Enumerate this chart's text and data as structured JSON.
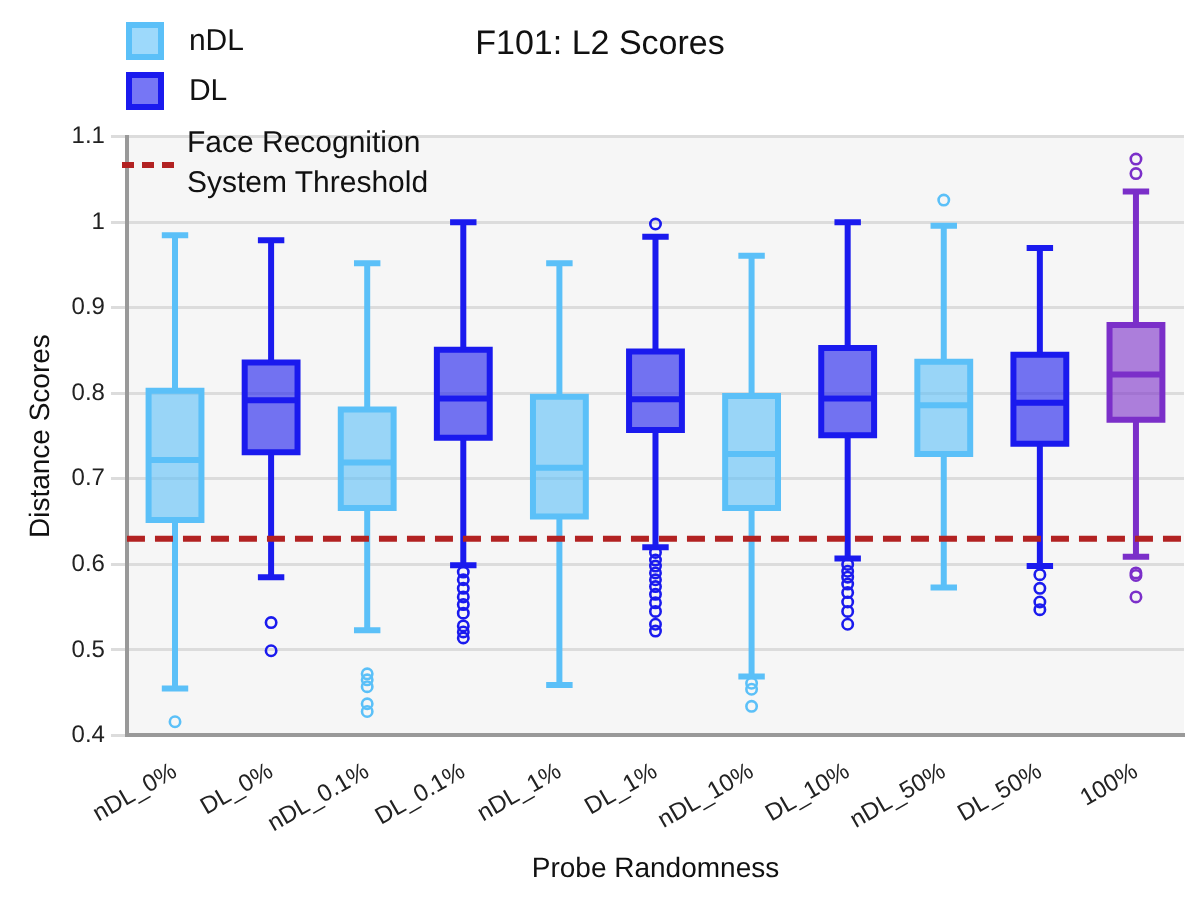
{
  "chart_data": {
    "type": "box",
    "title": "F101: L2 Scores",
    "xlabel": "Probe Randomness",
    "ylabel": "Distance Scores",
    "categories": [
      "nDL_0%",
      "DL_0%",
      "nDL_0.1%",
      "DL_0.1%",
      "nDL_1%",
      "DL_1%",
      "nDL_10%",
      "DL_10%",
      "nDL_50%",
      "DL_50%",
      "100%"
    ],
    "ylim": [
      0.4,
      1.1
    ],
    "yticks": [
      0.4,
      0.5,
      0.6,
      0.7,
      0.8,
      0.9,
      1,
      1.1
    ],
    "grid": "y",
    "legend": "top left",
    "ref_lines": [
      {
        "axis": "y",
        "value": 0.63,
        "label": "Face Recognition System Threshold",
        "color": "#b22222",
        "line_style": "dashed"
      }
    ],
    "series": [
      {
        "name": "nDL",
        "color": "#5bc0f8",
        "boxes": [
          {
            "low": 0.455,
            "q1": 0.652,
            "median": 0.722,
            "q3": 0.803,
            "high": 0.985,
            "outliers": [
              0.416
            ]
          },
          null,
          {
            "low": 0.523,
            "q1": 0.666,
            "median": 0.719,
            "q3": 0.781,
            "high": 0.952,
            "outliers": [
              0.472,
              0.465,
              0.457,
              0.437,
              0.428
            ]
          },
          null,
          {
            "low": 0.459,
            "q1": 0.656,
            "median": 0.713,
            "q3": 0.796,
            "high": 0.952
          },
          null,
          {
            "low": 0.469,
            "q1": 0.666,
            "median": 0.729,
            "q3": 0.797,
            "high": 0.961,
            "outliers": [
              0.461,
              0.454,
              0.434
            ]
          },
          null,
          {
            "low": 0.573,
            "q1": 0.729,
            "median": 0.786,
            "q3": 0.837,
            "high": 0.996,
            "outliers": [
              1.026
            ]
          },
          null,
          null
        ]
      },
      {
        "name": "DL",
        "color": "#1a1aee",
        "boxes": [
          null,
          {
            "low": 0.585,
            "q1": 0.731,
            "median": 0.792,
            "q3": 0.836,
            "high": 0.979,
            "outliers": [
              0.532,
              0.499
            ]
          },
          null,
          {
            "low": 0.599,
            "q1": 0.748,
            "median": 0.794,
            "q3": 0.851,
            "high": 1.0,
            "outliers": [
              0.591,
              0.582,
              0.572,
              0.562,
              0.553,
              0.543,
              0.528,
              0.521,
              0.514
            ]
          },
          null,
          {
            "low": 0.62,
            "q1": 0.757,
            "median": 0.793,
            "q3": 0.849,
            "high": 0.983,
            "outliers": [
              0.998,
              0.614,
              0.605,
              0.598,
              0.59,
              0.582,
              0.574,
              0.565,
              0.555,
              0.545,
              0.53,
              0.522
            ]
          },
          null,
          {
            "low": 0.607,
            "q1": 0.751,
            "median": 0.794,
            "q3": 0.853,
            "high": 1.0,
            "outliers": [
              0.6,
              0.592,
              0.585,
              0.577,
              0.567,
              0.556,
              0.545,
              0.53
            ]
          },
          null,
          {
            "low": 0.598,
            "q1": 0.741,
            "median": 0.789,
            "q3": 0.845,
            "high": 0.97,
            "outliers": [
              0.588,
              0.572,
              0.556,
              0.547
            ]
          },
          null
        ]
      },
      {
        "color": "#7b2fc9",
        "boxes": [
          null,
          null,
          null,
          null,
          null,
          null,
          null,
          null,
          null,
          null,
          {
            "low": 0.609,
            "q1": 0.769,
            "median": 0.822,
            "q3": 0.88,
            "high": 1.036,
            "outliers": [
              1.074,
              1.057,
              0.59,
              0.587,
              0.562
            ]
          }
        ]
      }
    ]
  }
}
